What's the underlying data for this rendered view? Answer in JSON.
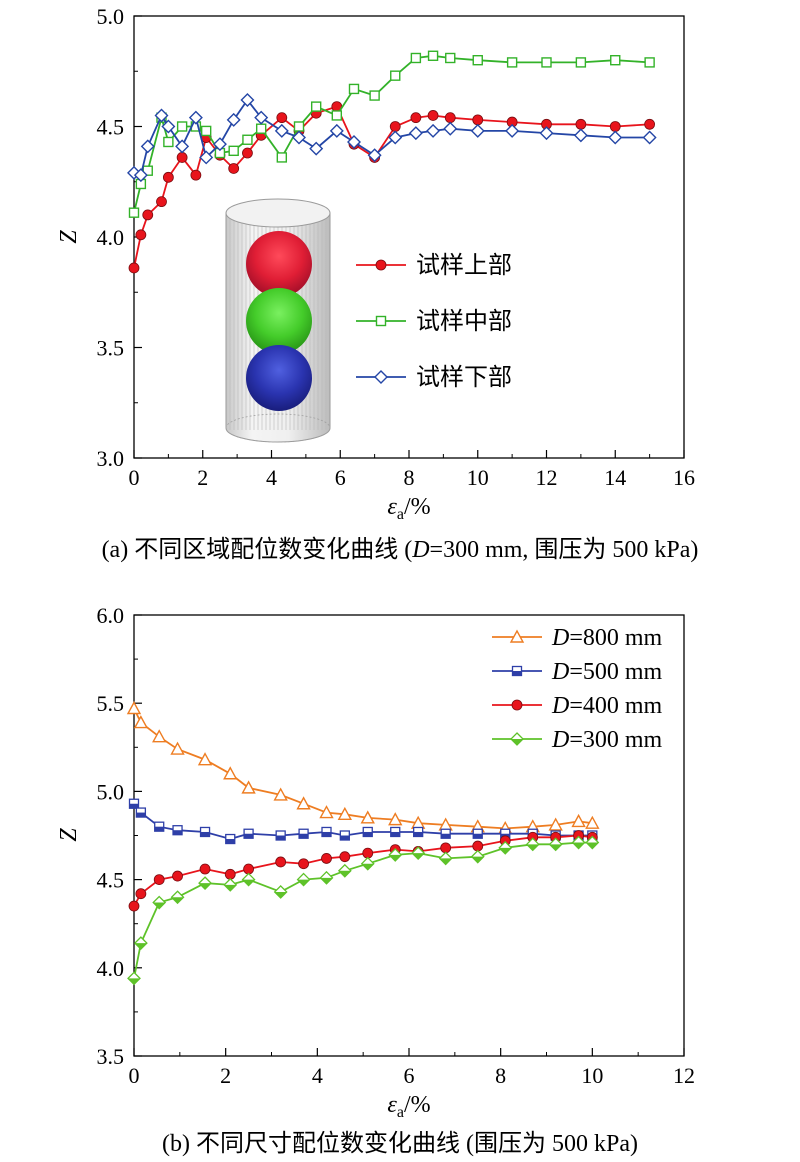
{
  "chart_data": [
    {
      "type": "line",
      "caption": "(a) 不同区域配位数变化曲线 (D=300 mm, 围压为 500 kPa)",
      "xlabel": "εa/%",
      "ylabel": "Z",
      "xlim": [
        0,
        16
      ],
      "ylim": [
        3.0,
        5.0
      ],
      "xticks": [
        "0",
        "2",
        "4",
        "6",
        "8",
        "10",
        "12",
        "14",
        "16"
      ],
      "yticks": [
        "3.0",
        "3.5",
        "4.0",
        "4.5",
        "5.0"
      ],
      "grid": false,
      "legend_position": "inside-center",
      "inset": "cylinder specimen with three coloured spheres (red top, green middle, blue bottom)",
      "series": [
        {
          "name": "试样上部",
          "color": "#e8141c",
          "marker": "circle",
          "x": [
            0,
            0.2,
            0.4,
            0.8,
            1.0,
            1.4,
            1.8,
            2.1,
            2.5,
            2.9,
            3.3,
            3.7,
            4.3,
            4.8,
            5.3,
            5.9,
            6.4,
            7.0,
            7.6,
            8.2,
            8.7,
            9.2,
            10,
            11,
            12,
            13,
            14,
            15
          ],
          "y": [
            3.86,
            4.01,
            4.1,
            4.16,
            4.27,
            4.36,
            4.28,
            4.45,
            4.37,
            4.31,
            4.38,
            4.46,
            4.54,
            4.48,
            4.56,
            4.59,
            4.42,
            4.36,
            4.5,
            4.54,
            4.55,
            4.54,
            4.53,
            4.52,
            4.51,
            4.51,
            4.5,
            4.51
          ]
        },
        {
          "name": "试样中部",
          "color": "#33b229",
          "marker": "square-open",
          "x": [
            0,
            0.2,
            0.4,
            0.8,
            1.0,
            1.4,
            1.8,
            2.1,
            2.5,
            2.9,
            3.3,
            3.7,
            4.3,
            4.8,
            5.3,
            5.9,
            6.4,
            7.0,
            7.6,
            8.2,
            8.7,
            9.2,
            10,
            11,
            12,
            13,
            14,
            15
          ],
          "y": [
            4.11,
            4.24,
            4.3,
            4.54,
            4.43,
            4.5,
            4.5,
            4.48,
            4.38,
            4.39,
            4.44,
            4.49,
            4.36,
            4.5,
            4.59,
            4.55,
            4.67,
            4.64,
            4.73,
            4.81,
            4.82,
            4.81,
            4.8,
            4.79,
            4.79,
            4.79,
            4.8,
            4.79
          ]
        },
        {
          "name": "试样下部",
          "color": "#2446a6",
          "marker": "diamond-open",
          "x": [
            0,
            0.2,
            0.4,
            0.8,
            1.0,
            1.4,
            1.8,
            2.1,
            2.5,
            2.9,
            3.3,
            3.7,
            4.3,
            4.8,
            5.3,
            5.9,
            6.4,
            7.0,
            7.6,
            8.2,
            8.7,
            9.2,
            10,
            11,
            12,
            13,
            14,
            15
          ],
          "y": [
            4.29,
            4.28,
            4.41,
            4.55,
            4.5,
            4.41,
            4.54,
            4.36,
            4.42,
            4.53,
            4.62,
            4.54,
            4.48,
            4.45,
            4.4,
            4.48,
            4.43,
            4.37,
            4.45,
            4.47,
            4.48,
            4.49,
            4.48,
            4.48,
            4.47,
            4.46,
            4.45,
            4.45
          ]
        }
      ]
    },
    {
      "type": "line",
      "caption": "(b) 不同尺寸配位数变化曲线 (围压为 500 kPa)",
      "xlabel": "εa/%",
      "ylabel": "Z",
      "xlim": [
        0,
        12
      ],
      "ylim": [
        3.5,
        6.0
      ],
      "xticks": [
        "0",
        "2",
        "4",
        "6",
        "8",
        "10",
        "12"
      ],
      "yticks": [
        "3.5",
        "4.0",
        "4.5",
        "5.0",
        "5.5",
        "6.0"
      ],
      "grid": false,
      "legend_position": "top-right",
      "series": [
        {
          "name": "D=800 mm",
          "name_italic": "D",
          "name_rest": "=800 mm",
          "color": "#ee7d22",
          "marker": "triangle-open",
          "x": [
            0,
            0.15,
            0.55,
            0.95,
            1.55,
            2.1,
            2.5,
            3.2,
            3.7,
            4.2,
            4.6,
            5.1,
            5.7,
            6.2,
            6.8,
            7.5,
            8.1,
            8.7,
            9.2,
            9.7,
            10.0
          ],
          "y": [
            5.47,
            5.39,
            5.31,
            5.24,
            5.18,
            5.1,
            5.02,
            4.98,
            4.93,
            4.88,
            4.87,
            4.85,
            4.84,
            4.82,
            4.81,
            4.8,
            4.79,
            4.8,
            4.81,
            4.83,
            4.82
          ]
        },
        {
          "name": "D=500 mm",
          "name_italic": "D",
          "name_rest": "=500 mm",
          "color": "#2e3fa8",
          "marker": "square-half",
          "x": [
            0,
            0.15,
            0.55,
            0.95,
            1.55,
            2.1,
            2.5,
            3.2,
            3.7,
            4.2,
            4.6,
            5.1,
            5.7,
            6.2,
            6.8,
            7.5,
            8.1,
            8.7,
            9.2,
            9.7,
            10.0
          ],
          "y": [
            4.93,
            4.88,
            4.8,
            4.78,
            4.77,
            4.73,
            4.76,
            4.75,
            4.76,
            4.77,
            4.75,
            4.77,
            4.77,
            4.77,
            4.76,
            4.76,
            4.76,
            4.76,
            4.75,
            4.75,
            4.75
          ]
        },
        {
          "name": "D=400 mm",
          "name_italic": "D",
          "name_rest": "=400 mm",
          "color": "#e8141c",
          "marker": "circle",
          "x": [
            0,
            0.15,
            0.55,
            0.95,
            1.55,
            2.1,
            2.5,
            3.2,
            3.7,
            4.2,
            4.6,
            5.1,
            5.7,
            6.2,
            6.8,
            7.5,
            8.1,
            8.7,
            9.2,
            9.7,
            10.0
          ],
          "y": [
            4.35,
            4.42,
            4.5,
            4.52,
            4.56,
            4.53,
            4.56,
            4.6,
            4.59,
            4.62,
            4.63,
            4.65,
            4.67,
            4.66,
            4.68,
            4.69,
            4.72,
            4.74,
            4.74,
            4.75,
            4.74
          ]
        },
        {
          "name": "D=300 mm",
          "name_italic": "D",
          "name_rest": "=300 mm",
          "color": "#5ec229",
          "marker": "diamond-half",
          "x": [
            0,
            0.15,
            0.55,
            0.95,
            1.55,
            2.1,
            2.5,
            3.2,
            3.7,
            4.2,
            4.6,
            5.1,
            5.7,
            6.2,
            6.8,
            7.5,
            8.1,
            8.7,
            9.2,
            9.7,
            10.0
          ],
          "y": [
            3.94,
            4.14,
            4.37,
            4.4,
            4.48,
            4.47,
            4.5,
            4.43,
            4.5,
            4.51,
            4.55,
            4.59,
            4.64,
            4.65,
            4.62,
            4.63,
            4.68,
            4.7,
            4.7,
            4.71,
            4.71
          ]
        }
      ]
    }
  ]
}
